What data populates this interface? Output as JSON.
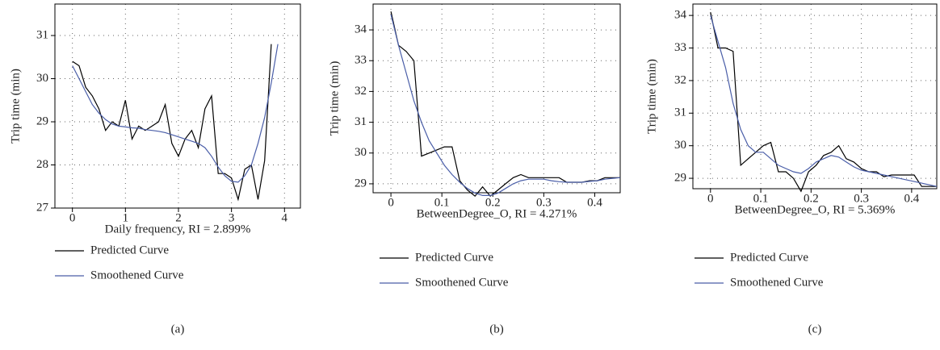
{
  "chart_data": [
    {
      "type": "line",
      "caption": "(a)",
      "x_label": "Daily frequency, RI = 2.899%",
      "y_label": "Trip time (min)",
      "grid": true,
      "x": [
        0,
        0.125,
        0.25,
        0.375,
        0.5,
        0.625,
        0.75,
        0.875,
        1,
        1.125,
        1.25,
        1.375,
        1.5,
        1.625,
        1.75,
        1.875,
        2,
        2.125,
        2.25,
        2.375,
        2.5,
        2.625,
        2.75,
        2.875,
        3,
        3.125,
        3.25,
        3.375,
        3.5,
        3.625,
        3.75,
        3.875
      ],
      "series": [
        {
          "name": "Predicted Curve",
          "color": "#000000",
          "values": [
            30.4,
            30.3,
            29.8,
            29.6,
            29.3,
            28.8,
            29.0,
            28.9,
            29.5,
            28.6,
            28.9,
            28.8,
            28.9,
            29.0,
            29.4,
            28.5,
            28.2,
            28.6,
            28.8,
            28.4,
            29.3,
            29.6,
            27.8,
            27.8,
            27.7,
            27.2,
            27.9,
            28.0,
            27.2,
            28.1,
            30.8,
            null
          ]
        },
        {
          "name": "Smoothened Curve",
          "color": "#4a5ea8",
          "values": [
            30.3,
            30.0,
            29.7,
            29.4,
            29.2,
            29.05,
            28.95,
            28.9,
            28.88,
            28.86,
            28.85,
            28.82,
            28.8,
            28.78,
            28.75,
            28.7,
            28.65,
            28.6,
            28.55,
            28.5,
            28.4,
            28.2,
            27.95,
            27.75,
            27.62,
            27.6,
            27.75,
            28.0,
            28.5,
            29.1,
            29.9,
            30.8
          ]
        }
      ],
      "xlim": [
        -0.33,
        4.3
      ],
      "xticks": [
        0,
        1,
        2,
        3,
        4
      ],
      "ylim": [
        27,
        31.73
      ],
      "yticks": [
        27,
        28,
        29,
        30,
        31
      ]
    },
    {
      "type": "line",
      "caption": "(b)",
      "x_label": "BetweenDegree_O, RI = 4.271%",
      "y_label": "Trip time (min)",
      "grid": true,
      "x": [
        0,
        0.015,
        0.03,
        0.045,
        0.06,
        0.075,
        0.09,
        0.105,
        0.12,
        0.135,
        0.15,
        0.165,
        0.18,
        0.195,
        0.21,
        0.225,
        0.24,
        0.255,
        0.27,
        0.285,
        0.3,
        0.315,
        0.33,
        0.345,
        0.36,
        0.375,
        0.39,
        0.405,
        0.42,
        0.435,
        0.45
      ],
      "series": [
        {
          "name": "Predicted Curve",
          "color": "#000000",
          "values": [
            34.6,
            33.5,
            33.3,
            33.0,
            29.9,
            30.0,
            30.1,
            30.2,
            30.2,
            29.1,
            28.8,
            28.6,
            28.9,
            28.6,
            28.8,
            29.0,
            29.2,
            29.3,
            29.2,
            29.2,
            29.2,
            29.2,
            29.2,
            29.05,
            29.05,
            29.05,
            29.1,
            29.1,
            29.2,
            29.2,
            29.2
          ]
        },
        {
          "name": "Smoothened Curve",
          "color": "#4a5ea8",
          "values": [
            34.5,
            33.5,
            32.6,
            31.7,
            31.0,
            30.4,
            30.0,
            29.6,
            29.3,
            29.05,
            28.85,
            28.7,
            28.62,
            28.62,
            28.7,
            28.85,
            29.0,
            29.1,
            29.15,
            29.15,
            29.15,
            29.1,
            29.07,
            29.05,
            29.05,
            29.05,
            29.08,
            29.1,
            29.15,
            29.18,
            29.2
          ]
        }
      ],
      "xlim": [
        -0.035,
        0.45
      ],
      "xticks": [
        0,
        0.1,
        0.2,
        0.3,
        0.4
      ],
      "ylim": [
        28.71,
        34.84
      ],
      "yticks": [
        29,
        30,
        31,
        32,
        33,
        34
      ]
    },
    {
      "type": "line",
      "caption": "(c)",
      "x_label": "BetweenDegree_O, RI = 5.369%",
      "y_label": "Trip time (min)",
      "grid": true,
      "x": [
        0,
        0.015,
        0.03,
        0.045,
        0.06,
        0.075,
        0.09,
        0.105,
        0.12,
        0.135,
        0.15,
        0.165,
        0.18,
        0.195,
        0.21,
        0.225,
        0.24,
        0.255,
        0.27,
        0.285,
        0.3,
        0.315,
        0.33,
        0.345,
        0.36,
        0.375,
        0.39,
        0.405,
        0.42,
        0.435,
        0.45
      ],
      "series": [
        {
          "name": "Predicted Curve",
          "color": "#000000",
          "values": [
            34.1,
            33.0,
            33.0,
            32.9,
            29.4,
            29.6,
            29.8,
            30.0,
            30.1,
            29.2,
            29.2,
            29.0,
            28.6,
            29.2,
            29.4,
            29.7,
            29.8,
            30.0,
            29.6,
            29.5,
            29.3,
            29.2,
            29.2,
            29.05,
            29.1,
            29.1,
            29.1,
            29.1,
            28.75,
            28.75,
            28.75
          ]
        },
        {
          "name": "Smoothened Curve",
          "color": "#4a5ea8",
          "values": [
            34.0,
            33.2,
            32.4,
            31.3,
            30.5,
            30.0,
            29.8,
            29.8,
            29.6,
            29.4,
            29.3,
            29.2,
            29.15,
            29.3,
            29.5,
            29.6,
            29.7,
            29.65,
            29.5,
            29.35,
            29.25,
            29.2,
            29.15,
            29.1,
            29.05,
            29.0,
            28.95,
            28.9,
            28.85,
            28.8,
            28.75
          ]
        }
      ],
      "xlim": [
        -0.035,
        0.45
      ],
      "xticks": [
        0,
        0.1,
        0.2,
        0.3,
        0.4
      ],
      "ylim": [
        28.68,
        34.35
      ],
      "yticks": [
        29,
        30,
        31,
        32,
        33,
        34
      ]
    }
  ]
}
